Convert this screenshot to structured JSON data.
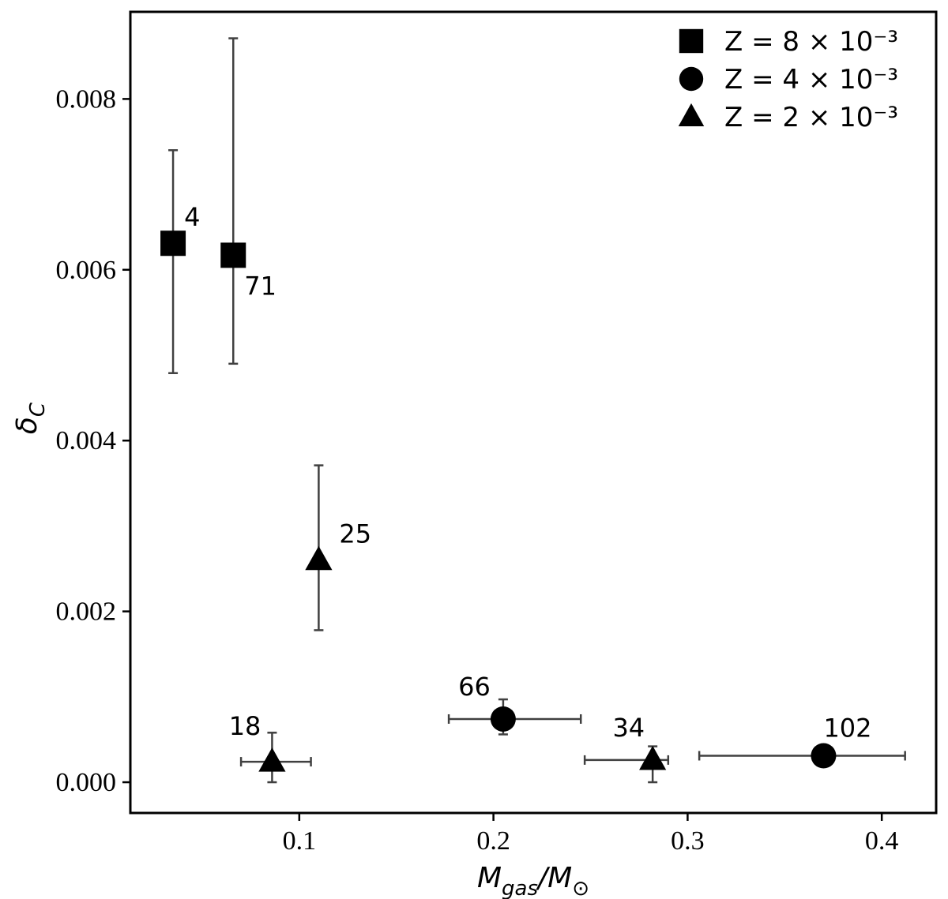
{
  "chart_data": {
    "type": "scatter",
    "title": "",
    "xlabel": "M_gas/M_⊙",
    "ylabel": "δ_C",
    "xlim": [
      0.013,
      0.428
    ],
    "ylim": [
      -0.00036,
      0.00902
    ],
    "x_ticks": [
      0.1,
      0.2,
      0.3,
      0.4
    ],
    "x_tick_labels": [
      "0.1",
      "0.2",
      "0.3",
      "0.4"
    ],
    "y_ticks": [
      0.0,
      0.002,
      0.004,
      0.006,
      0.008
    ],
    "y_tick_labels": [
      "0.000",
      "0.002",
      "0.004",
      "0.006",
      "0.008"
    ],
    "grid": false,
    "legend_position": "top-right",
    "series": [
      {
        "name": "Z = 8 × 10⁻³",
        "marker": "square",
        "points": [
          {
            "x": 0.035,
            "y": 0.00631,
            "yerr_low": 0.00479,
            "yerr_high": 0.0074,
            "label": "4"
          },
          {
            "x": 0.066,
            "y": 0.00617,
            "yerr_low": 0.0049,
            "yerr_high": 0.00871,
            "label": "71"
          }
        ]
      },
      {
        "name": "Z = 4 × 10⁻³",
        "marker": "circle",
        "points": [
          {
            "x": 0.205,
            "y": 0.00074,
            "xerr_low": 0.177,
            "xerr_high": 0.245,
            "yerr_low": 0.00056,
            "yerr_high": 0.00097,
            "label": "66"
          },
          {
            "x": 0.37,
            "y": 0.00031,
            "xerr_low": 0.306,
            "xerr_high": 0.412,
            "label": "102"
          }
        ]
      },
      {
        "name": "Z = 2 × 10⁻³",
        "marker": "triangle",
        "points": [
          {
            "x": 0.11,
            "y": 0.0026,
            "yerr_low": 0.00178,
            "yerr_high": 0.00371,
            "label": "25"
          },
          {
            "x": 0.086,
            "y": 0.00024,
            "xerr_low": 0.07,
            "xerr_high": 0.106,
            "yerr_low": 0.0,
            "yerr_high": 0.00058,
            "label": "18"
          },
          {
            "x": 0.282,
            "y": 0.00026,
            "xerr_low": 0.247,
            "xerr_high": 0.29,
            "yerr_low": 0.0,
            "yerr_high": 0.00042,
            "label": "34"
          }
        ]
      }
    ]
  }
}
